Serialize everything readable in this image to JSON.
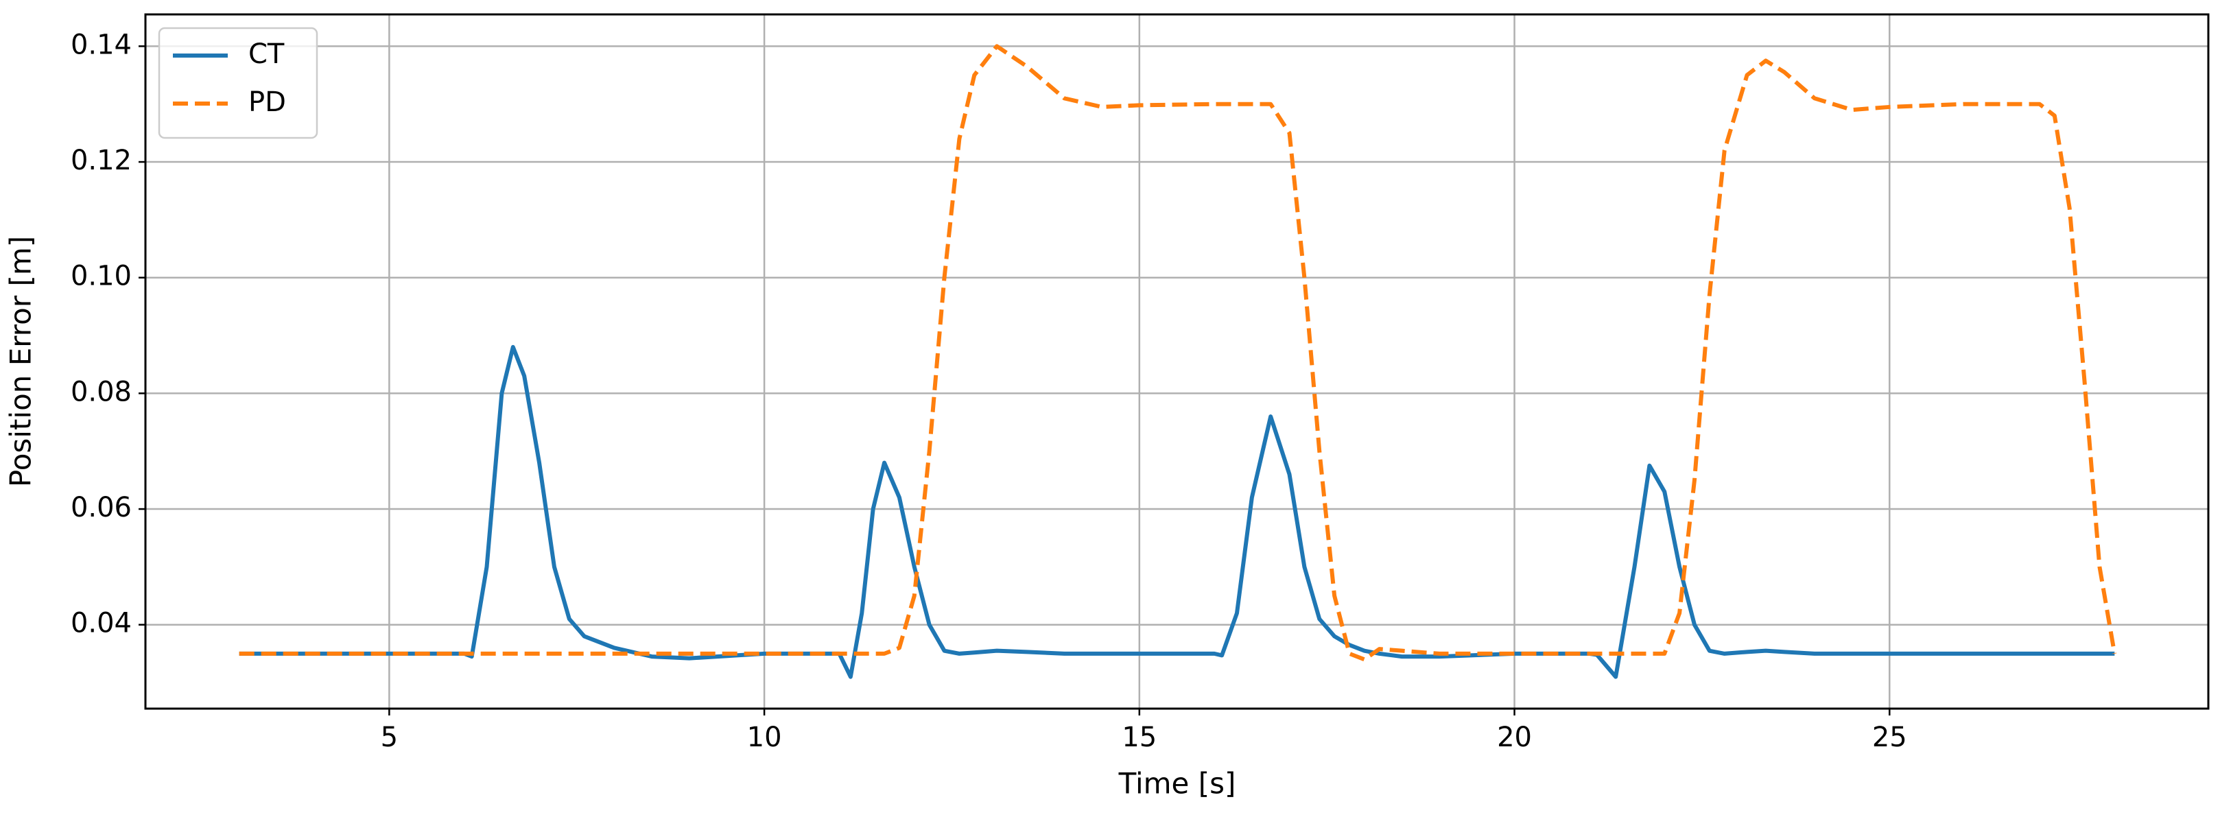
{
  "chart_data": {
    "type": "line",
    "x_label": "Time [s]",
    "y_label": "Position Error [m]",
    "x": [
      3,
      4,
      5,
      6,
      6.1,
      6.3,
      6.5,
      6.65,
      6.8,
      7,
      7.2,
      7.4,
      7.6,
      8,
      8.5,
      9,
      10,
      11,
      11.15,
      11.3,
      11.45,
      11.6,
      11.8,
      12,
      12.2,
      12.4,
      12.6,
      12.8,
      13.1,
      13.5,
      14,
      14.5,
      15,
      16,
      16.1,
      16.3,
      16.5,
      16.75,
      17,
      17.2,
      17.4,
      17.6,
      17.8,
      18,
      18.2,
      18.5,
      19,
      20,
      21,
      21.1,
      21.35,
      21.6,
      21.8,
      22,
      22.2,
      22.4,
      22.6,
      22.8,
      23.1,
      23.35,
      23.6,
      24,
      24.5,
      25,
      26,
      27,
      27.2,
      27.4,
      27.6,
      27.8,
      28
    ],
    "series": [
      {
        "name": "CT",
        "color": "#1f77b4",
        "dash": "solid",
        "values": [
          0.035,
          0.035,
          0.035,
          0.035,
          0.0345,
          0.05,
          0.08,
          0.088,
          0.083,
          0.068,
          0.05,
          0.041,
          0.038,
          0.036,
          0.0345,
          0.0342,
          0.035,
          0.035,
          0.031,
          0.042,
          0.06,
          0.068,
          0.062,
          0.05,
          0.04,
          0.0355,
          0.035,
          0.0352,
          0.0355,
          0.0353,
          0.035,
          0.035,
          0.035,
          0.035,
          0.0347,
          0.042,
          0.062,
          0.076,
          0.066,
          0.05,
          0.041,
          0.038,
          0.0365,
          0.0355,
          0.035,
          0.0345,
          0.0345,
          0.035,
          0.035,
          0.0348,
          0.031,
          0.05,
          0.0675,
          0.063,
          0.05,
          0.04,
          0.0355,
          0.035,
          0.0353,
          0.0355,
          0.0353,
          0.035,
          0.035,
          0.035,
          0.035,
          0.035,
          0.035,
          0.035,
          0.035,
          0.035,
          0.035
        ]
      },
      {
        "name": "PD",
        "color": "#ff7f0e",
        "dash": "dashed",
        "values": [
          0.035,
          0.035,
          0.035,
          0.035,
          0.035,
          0.035,
          0.035,
          0.035,
          0.035,
          0.035,
          0.035,
          0.035,
          0.035,
          0.035,
          0.035,
          0.035,
          0.035,
          0.035,
          0.035,
          0.035,
          0.035,
          0.035,
          0.036,
          0.045,
          0.07,
          0.1,
          0.124,
          0.135,
          0.14,
          0.1365,
          0.131,
          0.1295,
          0.1298,
          0.13,
          0.13,
          0.13,
          0.13,
          0.13,
          0.125,
          0.1,
          0.07,
          0.045,
          0.035,
          0.034,
          0.0358,
          0.0355,
          0.035,
          0.035,
          0.035,
          0.035,
          0.035,
          0.035,
          0.035,
          0.035,
          0.042,
          0.065,
          0.097,
          0.122,
          0.135,
          0.1375,
          0.1355,
          0.131,
          0.129,
          0.1295,
          0.13,
          0.13,
          0.128,
          0.112,
          0.082,
          0.05,
          0.035
        ]
      }
    ],
    "xlim": [
      1.75,
      29.25
    ],
    "xticks": [
      5,
      10,
      15,
      20,
      25
    ],
    "ylim": [
      0.0255,
      0.1455
    ],
    "yticks": [
      0.04,
      0.06,
      0.08,
      {
        "value": 0.1,
        "label": "0.10"
      },
      0.12,
      0.14
    ],
    "grid": true,
    "legend": "upper left"
  }
}
